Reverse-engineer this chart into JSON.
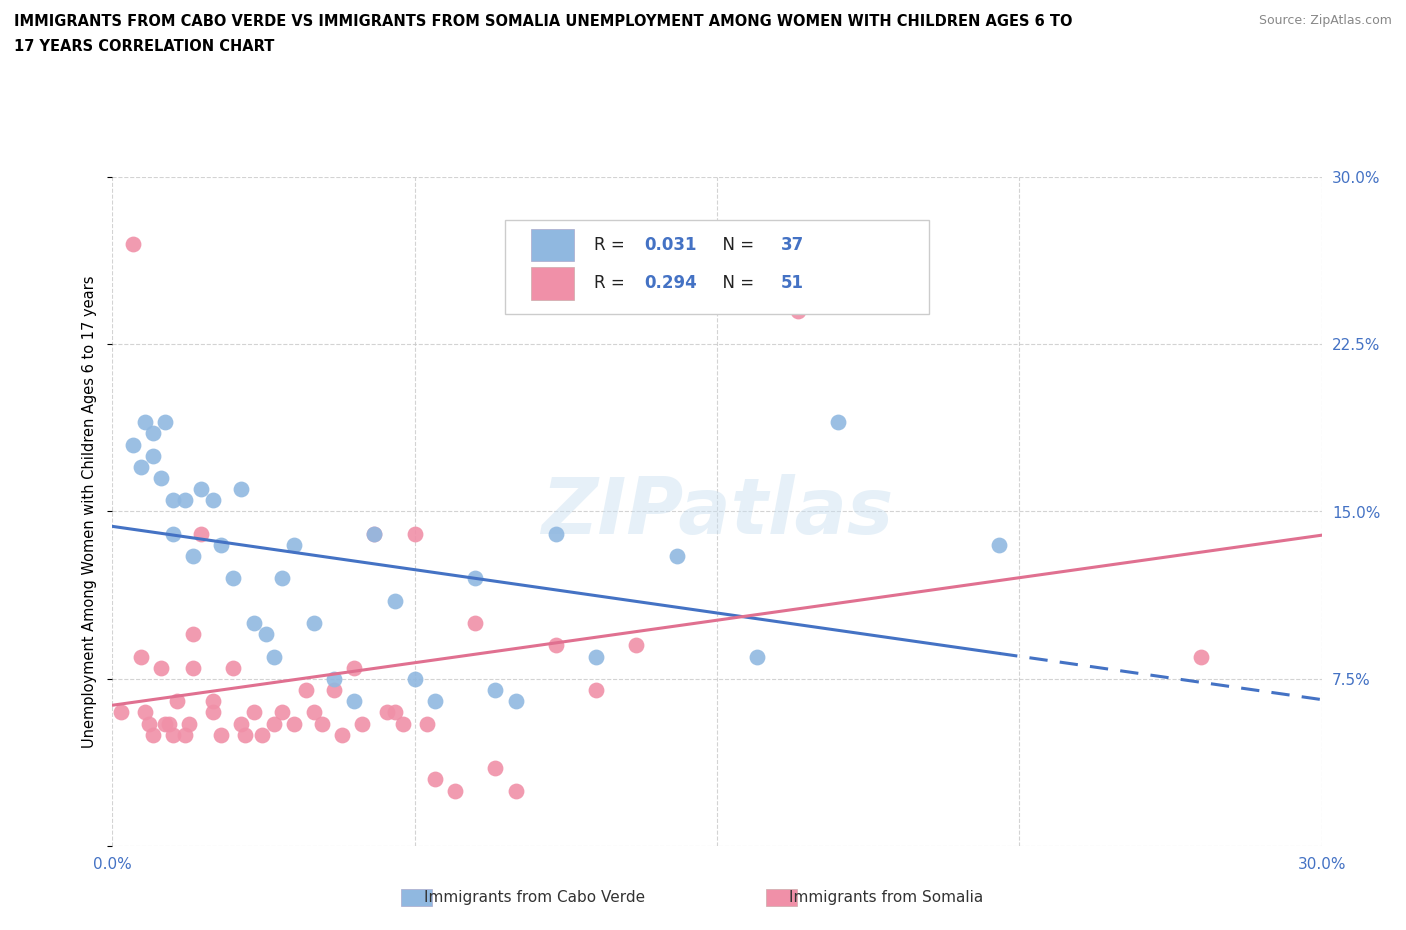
{
  "title_line1": "IMMIGRANTS FROM CABO VERDE VS IMMIGRANTS FROM SOMALIA UNEMPLOYMENT AMONG WOMEN WITH CHILDREN AGES 6 TO",
  "title_line2": "17 YEARS CORRELATION CHART",
  "source": "Source: ZipAtlas.com",
  "ylabel": "Unemployment Among Women with Children Ages 6 to 17 years",
  "xlim": [
    0.0,
    0.3
  ],
  "ylim": [
    0.0,
    0.3
  ],
  "xticks": [
    0.0,
    0.075,
    0.15,
    0.225,
    0.3
  ],
  "yticks": [
    0.0,
    0.075,
    0.15,
    0.225,
    0.3
  ],
  "watermark": "ZIPatlas",
  "cabo_verde_line_color": "#4472c4",
  "somalia_line_color": "#e07090",
  "cabo_verde_marker_color": "#90b8e0",
  "somalia_marker_color": "#f090a8",
  "R_cabo": 0.031,
  "N_cabo": 37,
  "R_somalia": 0.294,
  "N_somalia": 51,
  "cabo_verde_x": [
    0.005,
    0.007,
    0.008,
    0.01,
    0.01,
    0.012,
    0.013,
    0.015,
    0.015,
    0.018,
    0.02,
    0.022,
    0.025,
    0.027,
    0.03,
    0.032,
    0.035,
    0.038,
    0.04,
    0.042,
    0.045,
    0.05,
    0.055,
    0.06,
    0.065,
    0.07,
    0.075,
    0.08,
    0.09,
    0.095,
    0.1,
    0.11,
    0.12,
    0.14,
    0.16,
    0.18,
    0.22
  ],
  "cabo_verde_y": [
    0.18,
    0.17,
    0.19,
    0.185,
    0.175,
    0.165,
    0.19,
    0.155,
    0.14,
    0.155,
    0.13,
    0.16,
    0.155,
    0.135,
    0.12,
    0.16,
    0.1,
    0.095,
    0.085,
    0.12,
    0.135,
    0.1,
    0.075,
    0.065,
    0.14,
    0.11,
    0.075,
    0.065,
    0.12,
    0.07,
    0.065,
    0.14,
    0.085,
    0.13,
    0.085,
    0.19,
    0.135
  ],
  "somalia_x": [
    0.002,
    0.005,
    0.007,
    0.008,
    0.009,
    0.01,
    0.012,
    0.013,
    0.014,
    0.015,
    0.016,
    0.018,
    0.019,
    0.02,
    0.02,
    0.022,
    0.025,
    0.025,
    0.027,
    0.03,
    0.032,
    0.033,
    0.035,
    0.037,
    0.04,
    0.042,
    0.045,
    0.048,
    0.05,
    0.052,
    0.055,
    0.057,
    0.06,
    0.062,
    0.065,
    0.068,
    0.07,
    0.072,
    0.075,
    0.078,
    0.08,
    0.085,
    0.09,
    0.095,
    0.1,
    0.11,
    0.12,
    0.13,
    0.14,
    0.17,
    0.27
  ],
  "somalia_y": [
    0.06,
    0.27,
    0.085,
    0.06,
    0.055,
    0.05,
    0.08,
    0.055,
    0.055,
    0.05,
    0.065,
    0.05,
    0.055,
    0.08,
    0.095,
    0.14,
    0.06,
    0.065,
    0.05,
    0.08,
    0.055,
    0.05,
    0.06,
    0.05,
    0.055,
    0.06,
    0.055,
    0.07,
    0.06,
    0.055,
    0.07,
    0.05,
    0.08,
    0.055,
    0.14,
    0.06,
    0.06,
    0.055,
    0.14,
    0.055,
    0.03,
    0.025,
    0.1,
    0.035,
    0.025,
    0.09,
    0.07,
    0.09,
    0.245,
    0.24,
    0.085
  ],
  "background_color": "#ffffff",
  "grid_color": "#c8c8c8",
  "legend_label_cabo": "Immigrants from Cabo Verde",
  "legend_label_somalia": "Immigrants from Somalia"
}
